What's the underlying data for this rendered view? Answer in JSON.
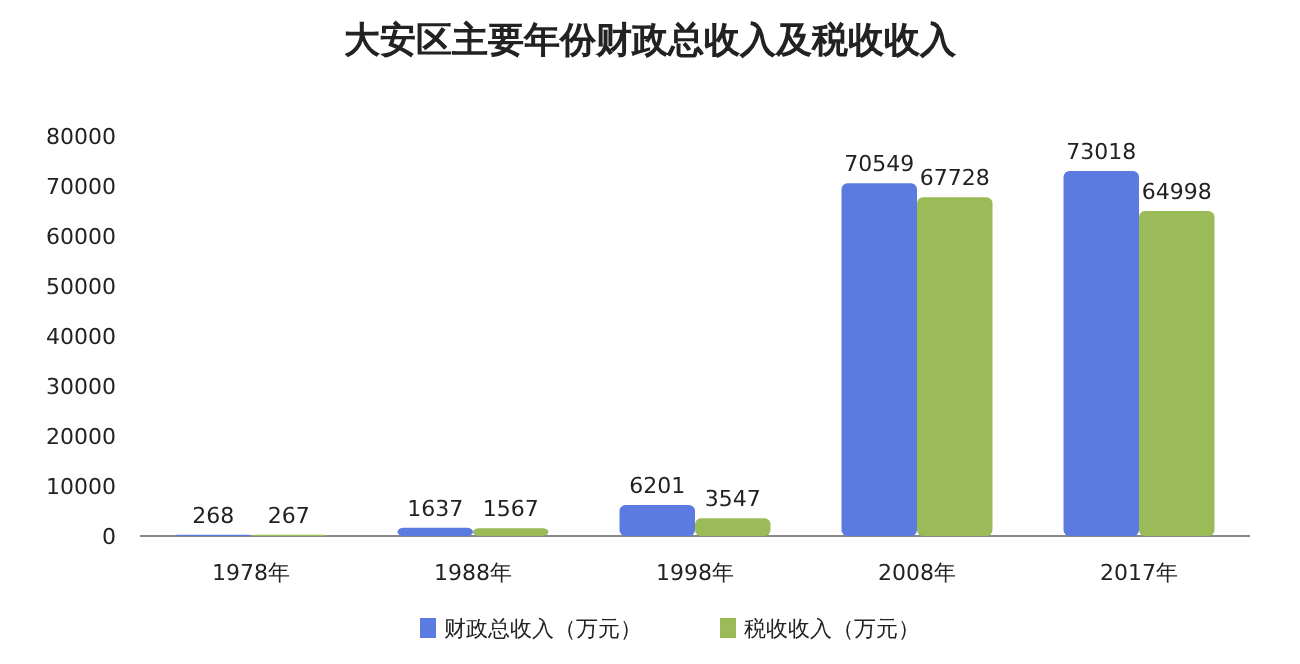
{
  "chart_data": {
    "type": "bar",
    "title": "大安区主要年份财政总收入及税收收入",
    "categories": [
      "1978年",
      "1988年",
      "1998年",
      "2008年",
      "2017年"
    ],
    "series": [
      {
        "name": "财政总收入（万元）",
        "color": "#5b7be0",
        "values": [
          268,
          1637,
          6201,
          70549,
          73018
        ]
      },
      {
        "name": "税收收入（万元）",
        "color": "#9bbb59",
        "values": [
          267,
          1567,
          3547,
          67728,
          64998
        ]
      }
    ],
    "ylim": [
      0,
      80000
    ],
    "yticks": [
      0,
      10000,
      20000,
      30000,
      40000,
      50000,
      60000,
      70000,
      80000
    ],
    "data_labels": true,
    "legend": "bottom"
  }
}
